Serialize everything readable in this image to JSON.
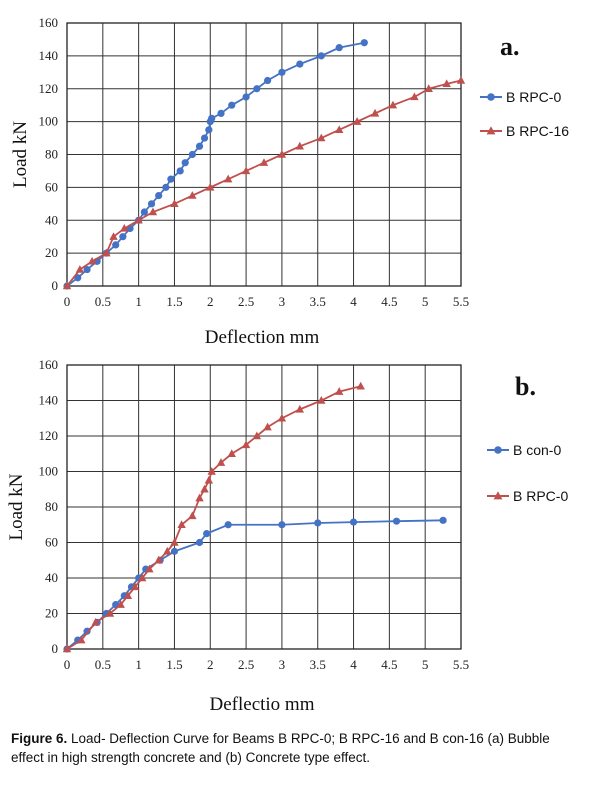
{
  "caption": {
    "label": "Figure 6.",
    "text": "Load- Deflection Curve for Beams B RPC-0; B RPC-16 and B con-16 (a) Bubble effect in high strength concrete and (b) Concrete type effect."
  },
  "chart_data": [
    {
      "type": "line",
      "panel_label": "a.",
      "xlabel": "Deflection mm",
      "ylabel": "Load kN",
      "xlim": [
        0,
        5.5
      ],
      "ylim": [
        0,
        160
      ],
      "x_ticks": [
        "0",
        "0.5",
        "1",
        "1.5",
        "2",
        "2.5",
        "3",
        "3.5",
        "4",
        "4.5",
        "5",
        "5.5"
      ],
      "y_ticks": [
        "0",
        "20",
        "40",
        "60",
        "80",
        "100",
        "120",
        "140",
        "160"
      ],
      "grid": true,
      "legend_position": "right",
      "series": [
        {
          "name": "B RPC-0",
          "color": "#4472c4",
          "marker": "circle",
          "x": [
            0,
            0.15,
            0.28,
            0.42,
            0.55,
            0.68,
            0.78,
            0.88,
            1.0,
            1.08,
            1.18,
            1.28,
            1.38,
            1.45,
            1.58,
            1.65,
            1.75,
            1.85,
            1.92,
            1.98,
            2.0,
            2.02,
            2.15,
            2.3,
            2.5,
            2.65,
            2.8,
            3.0,
            3.25,
            3.55,
            3.8,
            4.15
          ],
          "y": [
            0,
            5,
            10,
            15,
            20,
            25,
            30,
            35,
            40,
            45,
            50,
            55,
            60,
            65,
            70,
            75,
            80,
            85,
            90,
            95,
            100,
            102,
            105,
            110,
            115,
            120,
            125,
            130,
            135,
            140,
            145,
            148
          ]
        },
        {
          "name": "B RPC-16",
          "color": "#c0504d",
          "marker": "triangle",
          "x": [
            0,
            0.18,
            0.35,
            0.55,
            0.65,
            0.8,
            1.0,
            1.2,
            1.5,
            1.75,
            2.0,
            2.25,
            2.5,
            2.75,
            3.0,
            3.25,
            3.55,
            3.8,
            4.05,
            4.3,
            4.55,
            4.85,
            5.05,
            5.3,
            5.5
          ],
          "y": [
            0,
            10,
            15,
            20,
            30,
            35,
            40,
            45,
            50,
            55,
            60,
            65,
            70,
            75,
            80,
            85,
            90,
            95,
            100,
            105,
            110,
            115,
            120,
            123,
            125
          ]
        }
      ]
    },
    {
      "type": "line",
      "panel_label": "b.",
      "xlabel": "Deflectio mm",
      "ylabel": "Load kN",
      "xlim": [
        0,
        5.5
      ],
      "ylim": [
        0,
        160
      ],
      "x_ticks": [
        "0",
        "0.5",
        "1",
        "1.5",
        "2",
        "2.5",
        "3",
        "3.5",
        "4",
        "4.5",
        "5",
        "5.5"
      ],
      "y_ticks": [
        "0",
        "20",
        "40",
        "60",
        "80",
        "100",
        "120",
        "140",
        "160"
      ],
      "grid": true,
      "legend_position": "right",
      "series": [
        {
          "name": "B con-0",
          "color": "#4472c4",
          "marker": "circle",
          "x": [
            0,
            0.15,
            0.28,
            0.42,
            0.55,
            0.68,
            0.8,
            0.9,
            1.0,
            1.1,
            1.3,
            1.5,
            1.85,
            1.95,
            2.25,
            3.0,
            3.5,
            4.0,
            4.6,
            5.25
          ],
          "y": [
            0,
            5,
            10,
            15,
            20,
            25,
            30,
            35,
            40,
            45,
            50,
            55,
            60,
            65,
            70,
            70,
            71,
            71.5,
            72,
            72.5
          ]
        },
        {
          "name": "B RPC-0",
          "color": "#c0504d",
          "marker": "triangle",
          "x": [
            0,
            0.2,
            0.4,
            0.6,
            0.75,
            0.85,
            0.95,
            1.05,
            1.15,
            1.28,
            1.4,
            1.5,
            1.6,
            1.75,
            1.85,
            1.92,
            1.98,
            2.02,
            2.15,
            2.3,
            2.5,
            2.65,
            2.8,
            3.0,
            3.25,
            3.55,
            3.8,
            4.1
          ],
          "y": [
            0,
            5,
            15,
            20,
            25,
            30,
            35,
            40,
            45,
            50,
            55,
            60,
            70,
            75,
            85,
            90,
            95,
            100,
            105,
            110,
            115,
            120,
            125,
            130,
            135,
            140,
            145,
            148
          ]
        }
      ]
    }
  ]
}
